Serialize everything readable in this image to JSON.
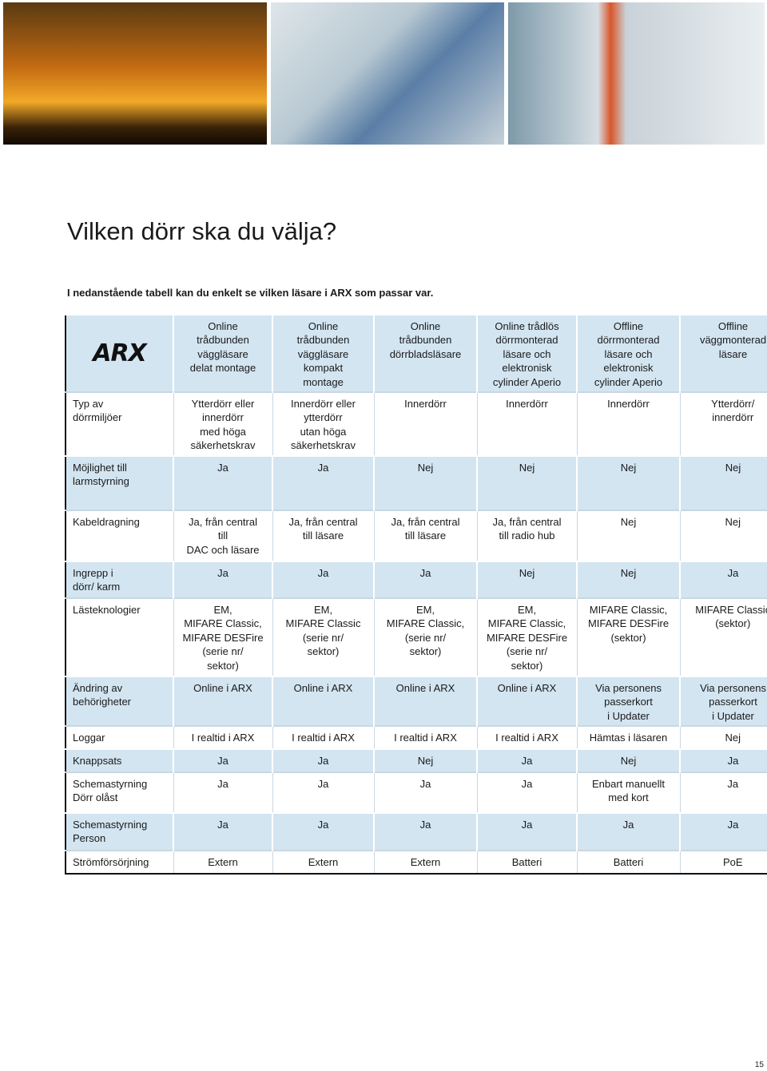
{
  "header": {
    "title": "Vilken dörr ska du välja?",
    "subtitle": "I nedanstående tabell kan du enkelt se vilken läsare i ARX som passar var."
  },
  "table": {
    "header": [
      "ARX",
      "Online\ntrådbunden\nväggläsare\ndelat montage",
      "Online\ntrådbunden\nväggläsare\nkompakt\nmontage",
      "Online\ntrådbunden\ndörrbladsläsare",
      "Online trådlös\ndörrmonterad\nläsare  och\nelektronisk\ncylinder Aperio",
      "Offline\ndörrmonterad\nläsare och\nelektronisk\ncylinder Aperio",
      "Offline\nväggmonterad\nläsare"
    ],
    "rows": [
      [
        "Typ av\ndörrmiljöer",
        "Ytterdörr eller\ninnerdörr\nmed höga\nsäkerhetskrav",
        "Innerdörr eller\nytterdörr\nutan höga\nsäkerhetskrav",
        "Innerdörr",
        "Innerdörr",
        "Innerdörr",
        "Ytterdörr/\ninnerdörr"
      ],
      [
        "Möjlighet till\nlarmstyrning",
        "Ja",
        "Ja",
        "Nej",
        "Nej",
        "Nej",
        "Nej"
      ],
      [
        "Kabeldragning",
        "Ja, från central\ntill\nDAC och läsare",
        "Ja, från central\ntill läsare",
        "Ja, från central\ntill läsare",
        "Ja, från central\ntill radio hub",
        "Nej",
        "Nej"
      ],
      [
        "Ingrepp i\ndörr/ karm",
        "Ja",
        "Ja",
        "Ja",
        "Nej",
        "Nej",
        "Ja"
      ],
      [
        "Lästeknologier",
        "EM,\nMIFARE Classic,\nMIFARE DESFire\n(serie nr/\nsektor)",
        "EM,\nMIFARE Classic\n(serie nr/\nsektor)",
        "EM,\nMIFARE Classic,\n(serie nr/\nsektor)",
        "EM,\nMIFARE Classic,\nMIFARE DESFire\n(serie nr/\nsektor)",
        "MIFARE Classic,\nMIFARE DESFire\n(sektor)",
        "MIFARE Classic\n(sektor)"
      ],
      [
        "Ändring av\nbehörigheter",
        "Online i ARX",
        "Online i ARX",
        "Online i ARX",
        "Online i ARX",
        "Via personens\npasserkort\ni Updater",
        "Via personens\npasserkort\ni Updater"
      ],
      [
        "Loggar",
        "I realtid i  ARX",
        "I realtid i  ARX",
        "I realtid i  ARX",
        "I realtid i  ARX",
        "Hämtas i läsaren",
        "Nej"
      ],
      [
        "Knappsats",
        "Ja",
        "Ja",
        "Nej",
        "Ja",
        "Nej",
        "Ja"
      ],
      [
        "Schemastyrning\nDörr olåst",
        "Ja",
        "Ja",
        "Ja",
        "Ja",
        "Enbart manuellt\nmed kort",
        "Ja"
      ],
      [
        "Schemastyrning\nPerson",
        "Ja",
        "Ja",
        "Ja",
        "Ja",
        "Ja",
        "Ja"
      ],
      [
        "Strömförsörjning",
        "Extern",
        "Extern",
        "Extern",
        "Batteri",
        "Batteri",
        "PoE"
      ]
    ]
  },
  "footer": {
    "page": "15"
  }
}
